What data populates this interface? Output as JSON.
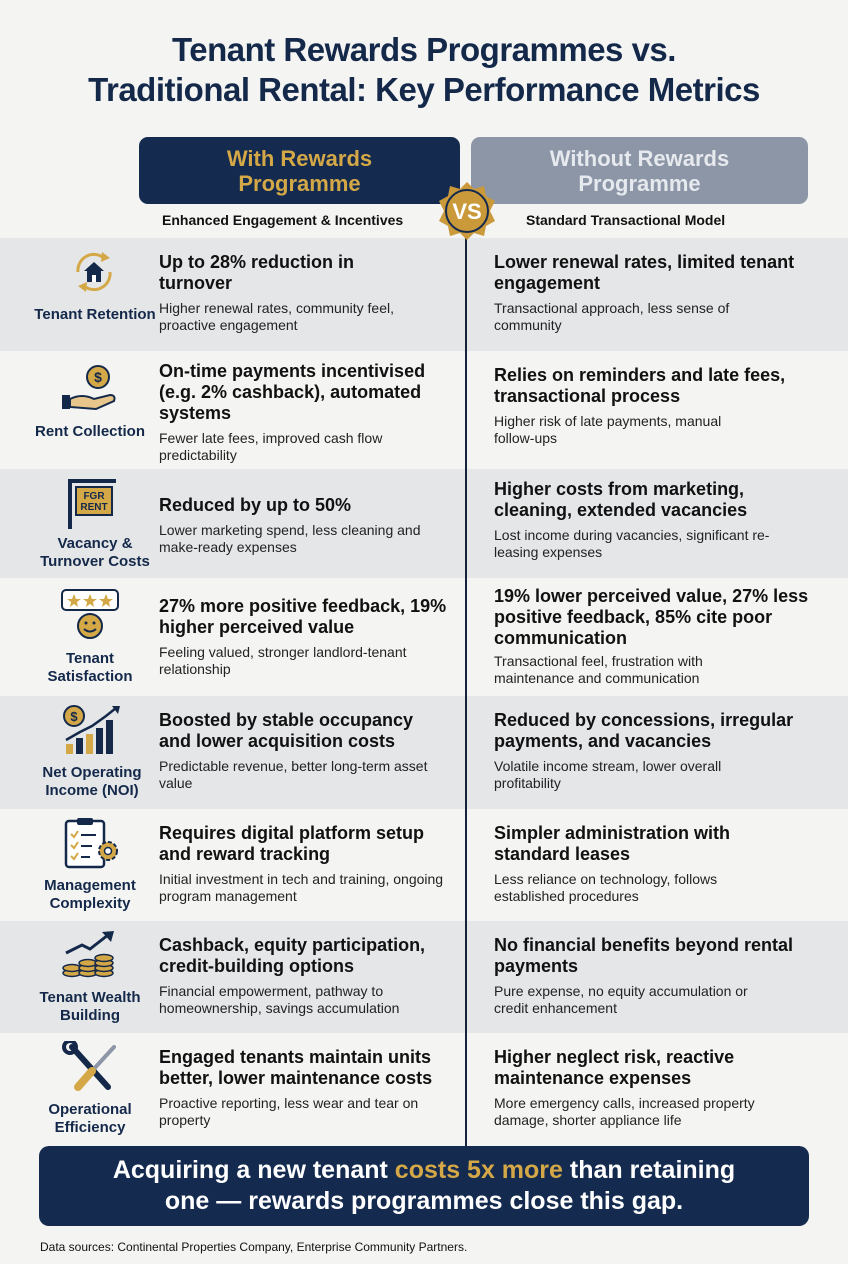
{
  "title": {
    "line1": "Tenant Rewards Programmes vs.",
    "line2": "Traditional Rental: Key Performance Metrics"
  },
  "columns": {
    "left": {
      "header": "With Rewards Programme",
      "subtitle": "Enhanced Engagement & Incentives"
    },
    "right": {
      "header": "Without Rewards Programme",
      "subtitle": "Standard Transactional Model"
    },
    "vs": "VS"
  },
  "rows": [
    {
      "label": "Tenant Retention",
      "icon": "house-cycle-icon",
      "left_head": "Up to 28% reduction in turnover",
      "left_desc": "Higher renewal rates, community feel, proactive engagement",
      "right_head": "Lower renewal rates, limited tenant engagement",
      "right_desc": "Transactional approach, less sense of community"
    },
    {
      "label": "Rent Collection",
      "icon": "coin-hand-icon",
      "left_head": "On-time payments incentivised (e.g. 2% cashback), automated systems",
      "left_desc": "Fewer late fees, improved cash flow predictability",
      "right_head": "Relies on reminders and late fees, transactional process",
      "right_desc": "Higher risk of late payments, manual follow-ups"
    },
    {
      "label": "Vacancy & Turnover Costs",
      "icon": "for-rent-sign-icon",
      "sign_text": "FGR RENT",
      "left_head": "Reduced by up to 50%",
      "left_desc": "Lower marketing spend, less cleaning and make-ready expenses",
      "right_head": "Higher costs from marketing, cleaning, extended vacancies",
      "right_desc": "Lost income during vacancies, significant re-leasing expenses"
    },
    {
      "label": "Tenant Satisfaction",
      "icon": "stars-smiley-icon",
      "left_head": "27% more positive feedback, 19% higher perceived value",
      "left_desc": "Feeling valued, stronger landlord-tenant relationship",
      "right_head": "19% lower perceived value, 27% less positive feedback, 85% cite poor communication",
      "right_desc": "Transactional feel, frustration with maintenance and communication"
    },
    {
      "label": "Net Operating Income (NOI)",
      "icon": "growth-chart-icon",
      "left_head": "Boosted by stable occupancy and lower acquisition costs",
      "left_desc": "Predictable revenue, better long-term asset value",
      "right_head": "Reduced by concessions, irregular payments, and vacancies",
      "right_desc": "Volatile income stream, lower overall profitability"
    },
    {
      "label": "Management Complexity",
      "icon": "clipboard-gear-icon",
      "left_head": "Requires digital platform setup and reward tracking",
      "left_desc": "Initial investment in tech and training, ongoing program management",
      "right_head": "Simpler administration with standard leases",
      "right_desc": "Less reliance on technology, follows established procedures"
    },
    {
      "label": "Tenant Wealth Building",
      "icon": "coin-stack-arrow-icon",
      "left_head": "Cashback, equity participation, credit-building options",
      "left_desc": "Financial empowerment, pathway to homeownership, savings accumulation",
      "right_head": "No financial benefits beyond rental payments",
      "right_desc": "Pure expense, no equity accumulation or credit enhancement"
    },
    {
      "label": "Operational Efficiency",
      "icon": "wrench-screwdriver-icon",
      "left_head": "Engaged tenants maintain units better, lower maintenance costs",
      "left_desc": "Proactive reporting, less wear and tear on property",
      "right_head": "Higher neglect risk, reactive maintenance expenses",
      "right_desc": "More emergency calls, increased property damage, shorter appliance life"
    }
  ],
  "banner": {
    "part1": "Acquiring a new tenant ",
    "highlight": "costs 5x more",
    "part2": " than retaining",
    "line2": "one — rewards programmes close this gap."
  },
  "sources": "Data sources: Continental Properties Company, Enterprise Community Partners.",
  "colors": {
    "navy": "#142a4f",
    "gold": "#d4a847",
    "slate": "#8c96a6"
  }
}
